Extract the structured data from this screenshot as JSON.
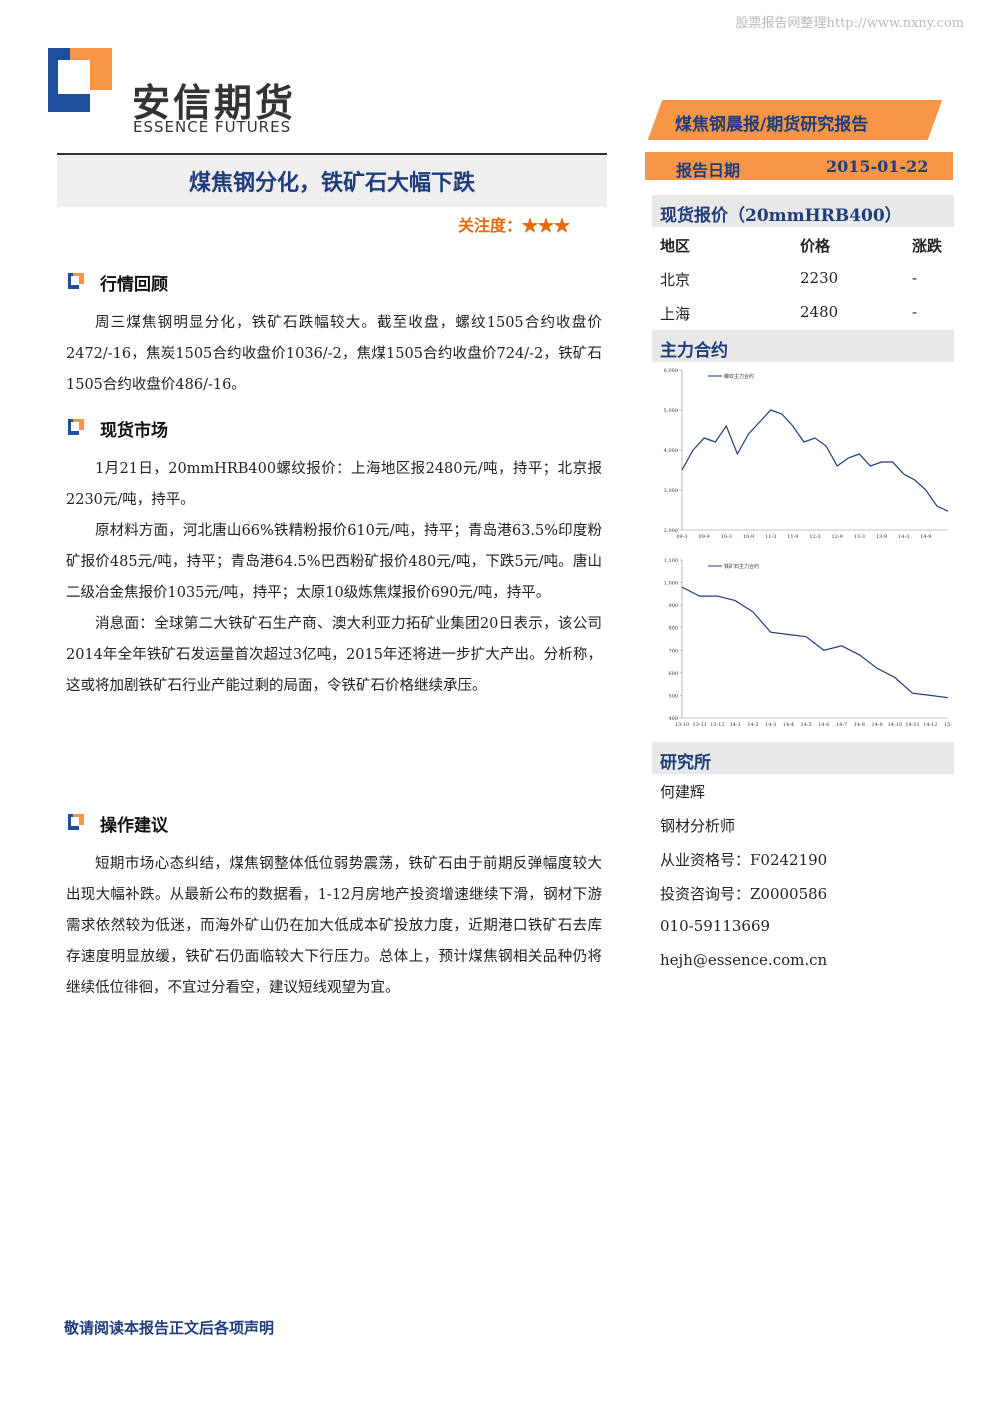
{
  "watermark": "股票报告网整理http://www.nxny.com",
  "logo": {
    "cn": "安信期货",
    "en": "ESSENCE FUTURES"
  },
  "report_type": "煤焦钢晨报/期货研究报告",
  "date_label": "报告日期",
  "date": "2015-01-22",
  "title": "煤焦钢分化，铁矿石大幅下跌",
  "attention": {
    "label": "关注度：",
    "stars": "★★★"
  },
  "sections": [
    {
      "heading": "行情回顾",
      "paragraphs": [
        "周三煤焦钢明显分化，铁矿石跌幅较大。截至收盘，螺纹1505合约收盘价2472/-16，焦炭1505合约收盘价1036/-2，焦煤1505合约收盘价724/-2，铁矿石1505合约收盘价486/-16。"
      ]
    },
    {
      "heading": "现货市场",
      "paragraphs": [
        "1月21日，20mmHRB400螺纹报价：上海地区报2480元/吨，持平；北京报2230元/吨，持平。",
        "原材料方面，河北唐山66%铁精粉报价610元/吨，持平；青岛港63.5%印度粉矿报价485元/吨，持平；青岛港64.5%巴西粉矿报价480元/吨，下跌5元/吨。唐山二级冶金焦报价1035元/吨，持平；太原10级炼焦煤报价690元/吨，持平。",
        "消息面：全球第二大铁矿石生产商、澳大利亚力拓矿业集团20日表示，该公司2014年全年铁矿石发运量首次超过3亿吨，2015年还将进一步扩大产出。分析称，这或将加剧铁矿石行业产能过剩的局面，令铁矿石价格继续承压。"
      ]
    },
    {
      "heading": "操作建议",
      "paragraphs": [
        "短期市场心态纠结，煤焦钢整体低位弱势震荡，铁矿石由于前期反弹幅度较大出现大幅补跌。从最新公布的数据看，1-12月房地产投资增速继续下滑，钢材下游需求依然较为低迷，而海外矿山仍在加大低成本矿投放力度，近期港口铁矿石去库存速度明显放缓，铁矿石仍面临较大下行压力。总体上，预计煤焦钢相关品种仍将继续低位徘徊，不宜过分看空，建议短线观望为宜。"
      ]
    }
  ],
  "spot": {
    "title": "现货报价（20mmHRB400）",
    "header": [
      "地区",
      "价格",
      "涨跌"
    ],
    "rows": [
      [
        "北京",
        "2230",
        "-"
      ],
      [
        "上海",
        "2480",
        "-"
      ]
    ]
  },
  "contracts_title": "主力合约",
  "chart_data": [
    {
      "type": "line",
      "categories": [
        "09-3",
        null,
        "09-9",
        null,
        "10-3",
        null,
        "10-9",
        null,
        "11-3",
        null,
        "11-9",
        null,
        "12-3",
        null,
        "12-9",
        null,
        "13-3",
        null,
        "13-9",
        null,
        "14-3",
        null,
        "14-9",
        null,
        null
      ],
      "series": [
        {
          "name": "螺纹主力合约",
          "color": "#1f3d7a",
          "values": [
            3500,
            4000,
            4300,
            4200,
            4600,
            3900,
            4400,
            4700,
            5000,
            4900,
            4600,
            4200,
            4300,
            4100,
            3600,
            3800,
            3900,
            3600,
            3700,
            3700,
            3400,
            3250,
            3000,
            2600,
            2470
          ]
        }
      ],
      "ylim": [
        2000,
        6000
      ],
      "yticks": [
        {
          "value": 2000,
          "label": "2,000"
        },
        {
          "value": 3000,
          "label": "3,000"
        },
        {
          "value": 4000,
          "label": "4,000"
        },
        {
          "value": 5000,
          "label": "5,000"
        },
        {
          "value": 6000,
          "label": "6,000"
        }
      ]
    },
    {
      "type": "line",
      "categories": [
        "13-10",
        "13-11",
        "13-12",
        "14-1",
        "14-2",
        "14-3",
        "14-4",
        "14-5",
        "14-6",
        "14-7",
        "14-8",
        "14-9",
        "14-10",
        "14-11",
        "14-12",
        "15-"
      ],
      "series": [
        {
          "name": "铁矿石主力合约",
          "color": "#1f3d7a",
          "values": [
            980,
            940,
            940,
            920,
            870,
            780,
            770,
            760,
            700,
            720,
            680,
            620,
            580,
            510,
            500,
            490
          ]
        }
      ],
      "ylim": [
        400,
        1100
      ],
      "yticks": [
        400,
        500,
        600,
        700,
        800,
        900,
        {
          "value": 1000,
          "label": "1,000"
        },
        {
          "value": 1100,
          "label": "1,100"
        }
      ]
    }
  ],
  "research": {
    "title": "研究所",
    "lines": [
      "何建辉",
      "钢材分析师",
      "从业资格号：F0242190",
      "投资咨询号：Z0000586",
      "010-59113669",
      "hejh@essence.com.cn"
    ]
  },
  "footer": "敬请阅读本报告正文后各项声明"
}
